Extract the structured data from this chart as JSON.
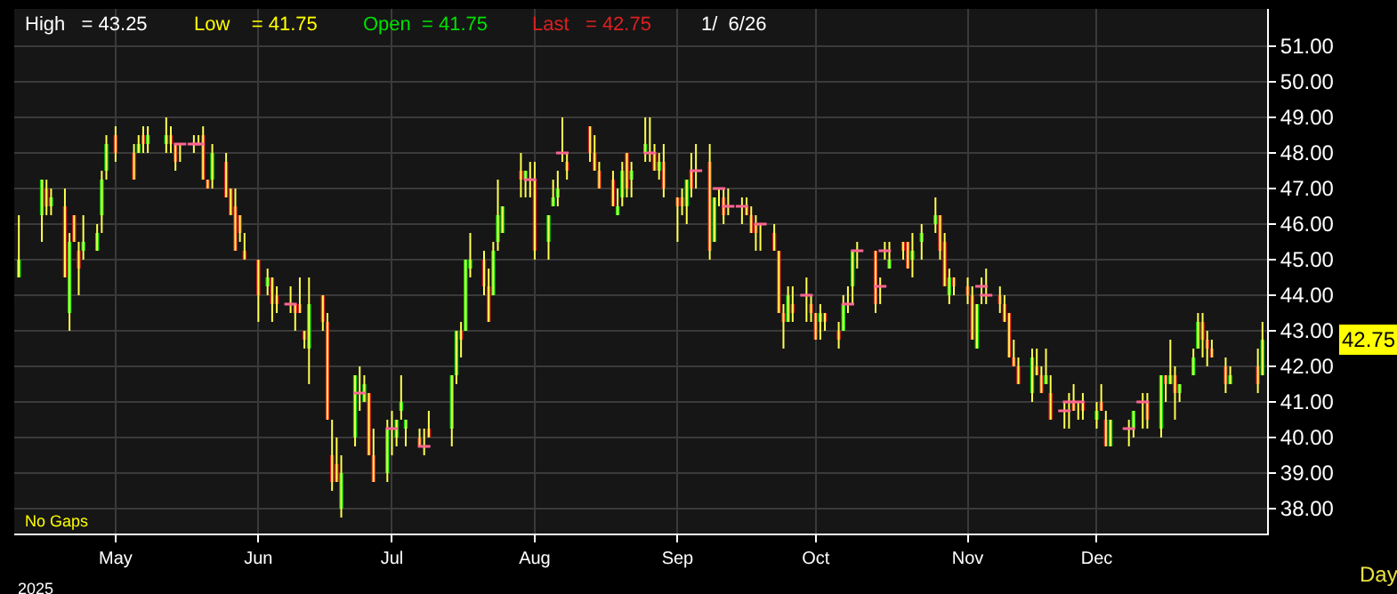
{
  "chart_data": {
    "type": "candlestick",
    "x": [
      "2025-04-11",
      "2025-04-16",
      "2025-04-17",
      "2025-04-18",
      "2025-04-21",
      "2025-04-22",
      "2025-04-23",
      "2025-04-24",
      "2025-04-25",
      "2025-04-28",
      "2025-04-29",
      "2025-04-30",
      "2025-05-02",
      "2025-05-06",
      "2025-05-07",
      "2025-05-08",
      "2025-05-09",
      "2025-05-13",
      "2025-05-14",
      "2025-05-15",
      "2025-05-16",
      "2025-05-19",
      "2025-05-20",
      "2025-05-21",
      "2025-05-22",
      "2025-05-23",
      "2025-05-26",
      "2025-05-27",
      "2025-05-28",
      "2025-05-29",
      "2025-05-30",
      "2025-06-02",
      "2025-06-04",
      "2025-06-05",
      "2025-06-06",
      "2025-06-09",
      "2025-06-10",
      "2025-06-11",
      "2025-06-12",
      "2025-06-13",
      "2025-06-16",
      "2025-06-17",
      "2025-06-18",
      "2025-06-19",
      "2025-06-20",
      "2025-06-23",
      "2025-06-24",
      "2025-06-25",
      "2025-06-26",
      "2025-06-27",
      "2025-06-30",
      "2025-07-01",
      "2025-07-02",
      "2025-07-03",
      "2025-07-04",
      "2025-07-07",
      "2025-07-08",
      "2025-07-09",
      "2025-07-14",
      "2025-07-15",
      "2025-07-16",
      "2025-07-17",
      "2025-07-18",
      "2025-07-21",
      "2025-07-22",
      "2025-07-23",
      "2025-07-24",
      "2025-07-25",
      "2025-07-29",
      "2025-07-30",
      "2025-07-31",
      "2025-08-01",
      "2025-08-04",
      "2025-08-05",
      "2025-08-06",
      "2025-08-07",
      "2025-08-08",
      "2025-08-13",
      "2025-08-14",
      "2025-08-15",
      "2025-08-18",
      "2025-08-19",
      "2025-08-20",
      "2025-08-21",
      "2025-08-22",
      "2025-08-25",
      "2025-08-26",
      "2025-08-27",
      "2025-08-28",
      "2025-08-29",
      "2025-09-01",
      "2025-09-02",
      "2025-09-03",
      "2025-09-04",
      "2025-09-05",
      "2025-09-08",
      "2025-09-09",
      "2025-09-10",
      "2025-09-11",
      "2025-09-12",
      "2025-09-15",
      "2025-09-16",
      "2025-09-17",
      "2025-09-18",
      "2025-09-19",
      "2025-09-22",
      "2025-09-23",
      "2025-09-24",
      "2025-09-25",
      "2025-09-26",
      "2025-09-29",
      "2025-09-30",
      "2025-10-01",
      "2025-10-02",
      "2025-10-03",
      "2025-10-06",
      "2025-10-07",
      "2025-10-08",
      "2025-10-09",
      "2025-10-10",
      "2025-10-14",
      "2025-10-15",
      "2025-10-16",
      "2025-10-17",
      "2025-10-20",
      "2025-10-21",
      "2025-10-22",
      "2025-10-24",
      "2025-10-27",
      "2025-10-28",
      "2025-10-29",
      "2025-10-30",
      "2025-10-31",
      "2025-11-03",
      "2025-11-04",
      "2025-11-05",
      "2025-11-06",
      "2025-11-07",
      "2025-11-10",
      "2025-11-11",
      "2025-11-12",
      "2025-11-13",
      "2025-11-14",
      "2025-11-17",
      "2025-11-18",
      "2025-11-19",
      "2025-11-20",
      "2025-11-21",
      "2025-11-24",
      "2025-11-25",
      "2025-11-26",
      "2025-11-27",
      "2025-11-28",
      "2025-12-01",
      "2025-12-02",
      "2025-12-03",
      "2025-12-04",
      "2025-12-08",
      "2025-12-09",
      "2025-12-11",
      "2025-12-12",
      "2025-12-15",
      "2025-12-16",
      "2025-12-17",
      "2025-12-18",
      "2025-12-19",
      "2025-12-22",
      "2025-12-23",
      "2025-12-24",
      "2025-12-25",
      "2025-12-26",
      "2025-12-29",
      "2025-12-30",
      "2026-01-05",
      "2026-01-06"
    ],
    "ohlc": [
      [
        44.5,
        46.25,
        44.5,
        45
      ],
      [
        46.25,
        47.25,
        45.5,
        47.25
      ],
      [
        47,
        47.25,
        46.25,
        46.5
      ],
      [
        46.5,
        47,
        46.25,
        46.75
      ],
      [
        46.5,
        47,
        44.5,
        44.5
      ],
      [
        43.5,
        45.75,
        43,
        45.5
      ],
      [
        46.25,
        46.25,
        45.5,
        45.5
      ],
      [
        45.25,
        45.5,
        44,
        44.75
      ],
      [
        45.25,
        46.25,
        45,
        45.5
      ],
      [
        45.25,
        46,
        45.25,
        45.75
      ],
      [
        46.25,
        47.5,
        45.75,
        47.25
      ],
      [
        47.5,
        48.5,
        47.25,
        48.25
      ],
      [
        48.5,
        48.75,
        47.75,
        48
      ],
      [
        48,
        48.25,
        47.25,
        47.25
      ],
      [
        48,
        48.5,
        48,
        48.25
      ],
      [
        48.5,
        48.75,
        48,
        48.25
      ],
      [
        48.25,
        48.75,
        48,
        48.5
      ],
      [
        48.25,
        49,
        48,
        48.5
      ],
      [
        48.5,
        48.75,
        48,
        48.25
      ],
      [
        48.25,
        48.25,
        47.5,
        47.75
      ],
      [
        48.25,
        48.25,
        47.75,
        48.25
      ],
      [
        48.25,
        48.5,
        48,
        48.25
      ],
      [
        48.25,
        48.5,
        48.25,
        48.25
      ],
      [
        48.5,
        48.75,
        47.25,
        47.25
      ],
      [
        47.25,
        47.25,
        47,
        47
      ],
      [
        47.25,
        48.25,
        47,
        48
      ],
      [
        47.75,
        48,
        46.75,
        46.75
      ],
      [
        47,
        47,
        46.25,
        46.25
      ],
      [
        46.5,
        47,
        45.25,
        45.25
      ],
      [
        46.25,
        46.25,
        45.5,
        45.75
      ],
      [
        45.25,
        45.75,
        45,
        45
      ],
      [
        45,
        45,
        43.25,
        44
      ],
      [
        44.25,
        44.75,
        44,
        44.5
      ],
      [
        44.5,
        44.5,
        43.25,
        43.75
      ],
      [
        44,
        44.25,
        43.5,
        43.75
      ],
      [
        43.75,
        44.25,
        43.5,
        43.75
      ],
      [
        43.75,
        43.75,
        43,
        43.5
      ],
      [
        43.75,
        44.5,
        43.5,
        43.5
      ],
      [
        43,
        43,
        42.5,
        42.75
      ],
      [
        42.5,
        44.5,
        41.5,
        43.75
      ],
      [
        44,
        44,
        43,
        43.25
      ],
      [
        43.25,
        43.5,
        40.5,
        40.5
      ],
      [
        39.5,
        40.5,
        38.5,
        38.75
      ],
      [
        39.25,
        40,
        38.75,
        38.75
      ],
      [
        38,
        39.5,
        37.75,
        39
      ],
      [
        40,
        41.75,
        39.75,
        41.75
      ],
      [
        41.25,
        42,
        40.75,
        41.25
      ],
      [
        41,
        41.75,
        41,
        41.5
      ],
      [
        41.25,
        41.25,
        39.5,
        39.5
      ],
      [
        39.5,
        40.25,
        38.75,
        38.75
      ],
      [
        39,
        40.5,
        38.75,
        40.25
      ],
      [
        40.25,
        40.75,
        39.5,
        40.25
      ],
      [
        40,
        40.5,
        39.75,
        40.5
      ],
      [
        40.75,
        41.75,
        40.5,
        41
      ],
      [
        40.25,
        40.5,
        39.75,
        40.5
      ],
      [
        40,
        40.25,
        39.75,
        39.75
      ],
      [
        39.75,
        40.25,
        39.5,
        39.75
      ],
      [
        40.25,
        40.75,
        40,
        40
      ],
      [
        40.25,
        41.75,
        39.75,
        41.75
      ],
      [
        41.75,
        43,
        41.5,
        43
      ],
      [
        43,
        43.25,
        42.25,
        42.75
      ],
      [
        43,
        45,
        43,
        45
      ],
      [
        44.75,
        45.75,
        44.5,
        45
      ],
      [
        45,
        45.25,
        44,
        44.25
      ],
      [
        44.25,
        44.75,
        43.25,
        43.25
      ],
      [
        44,
        45.5,
        44,
        45.25
      ],
      [
        45.5,
        47.25,
        45.25,
        46.25
      ],
      [
        45.75,
        46.5,
        45.75,
        46.5
      ],
      [
        47.5,
        48,
        46.75,
        47.25
      ],
      [
        47.25,
        47.5,
        46.75,
        47.5
      ],
      [
        47.25,
        47.75,
        46.75,
        47.25
      ],
      [
        47.25,
        47.75,
        45,
        45.25
      ],
      [
        45.5,
        46.25,
        45,
        46.25
      ],
      [
        46.5,
        47.25,
        46.5,
        46.75
      ],
      [
        46.75,
        47.5,
        46.5,
        47
      ],
      [
        48,
        49,
        47.75,
        48
      ],
      [
        47.75,
        48,
        47.25,
        47.5
      ],
      [
        48.75,
        48.75,
        47.75,
        48
      ],
      [
        48,
        48.5,
        47.5,
        47.5
      ],
      [
        47.5,
        47.75,
        47,
        47
      ],
      [
        47.25,
        47.5,
        46.5,
        46.5
      ],
      [
        46.25,
        47,
        46.25,
        46.5
      ],
      [
        46.75,
        47.75,
        46.5,
        47.5
      ],
      [
        48,
        48,
        46.75,
        47
      ],
      [
        47.25,
        47.75,
        46.75,
        47.5
      ],
      [
        48,
        49,
        47.75,
        48.25
      ],
      [
        48,
        49,
        47.75,
        48
      ],
      [
        48,
        48.25,
        47.5,
        47.5
      ],
      [
        47.5,
        48,
        47.25,
        47.75
      ],
      [
        47.75,
        48.25,
        46.75,
        47
      ],
      [
        46.75,
        46.75,
        45.5,
        46.5
      ],
      [
        46.75,
        47,
        46.25,
        46.5
      ],
      [
        46.5,
        47.25,
        46,
        47.25
      ],
      [
        47.5,
        48,
        46.75,
        47
      ],
      [
        47.5,
        48.25,
        47,
        47.5
      ],
      [
        47.75,
        48.25,
        45,
        45.25
      ],
      [
        45.5,
        46.75,
        45.5,
        46.75
      ],
      [
        47,
        47,
        46.5,
        47
      ],
      [
        46.75,
        47,
        46,
        46.25
      ],
      [
        46.5,
        47,
        46.25,
        46.5
      ],
      [
        46.5,
        46.75,
        46,
        46.5
      ],
      [
        46.5,
        46.75,
        46.25,
        46.25
      ],
      [
        46.25,
        46.5,
        45.75,
        45.75
      ],
      [
        46,
        46.25,
        45.25,
        45.75
      ],
      [
        46,
        46,
        45.25,
        46
      ],
      [
        45.75,
        46,
        45.25,
        45.25
      ],
      [
        45.25,
        45.25,
        43.5,
        43.5
      ],
      [
        43.5,
        43.75,
        42.5,
        43.25
      ],
      [
        43.25,
        44.25,
        43.25,
        44
      ],
      [
        43.75,
        44.25,
        43.25,
        43.5
      ],
      [
        44,
        44.5,
        43.25,
        44
      ],
      [
        43.75,
        44,
        43.25,
        43.5
      ],
      [
        43.5,
        43.5,
        42.75,
        42.75
      ],
      [
        43.25,
        43.75,
        42.75,
        43.5
      ],
      [
        43.5,
        43.5,
        43,
        43.25
      ],
      [
        43,
        43.25,
        42.5,
        42.75
      ],
      [
        43,
        44,
        43,
        43.75
      ],
      [
        43.75,
        44.25,
        43.5,
        43.75
      ],
      [
        44.25,
        45.25,
        43.75,
        45.25
      ],
      [
        45.25,
        45.5,
        44.75,
        45.25
      ],
      [
        45.25,
        45.25,
        43.5,
        43.75
      ],
      [
        44.25,
        44.5,
        43.75,
        44.25
      ],
      [
        45.25,
        45.5,
        45,
        45.25
      ],
      [
        44.75,
        45.5,
        44.75,
        45
      ],
      [
        45.5,
        45.5,
        45,
        45.25
      ],
      [
        45.5,
        45.5,
        44.75,
        44.75
      ],
      [
        45,
        45.75,
        44.5,
        45.25
      ],
      [
        45.5,
        46,
        45,
        45.75
      ],
      [
        46,
        46.75,
        45.75,
        46.25
      ],
      [
        46.25,
        46.25,
        45,
        45.25
      ],
      [
        45.5,
        45.75,
        44.25,
        44.25
      ],
      [
        44,
        44.75,
        43.75,
        44.5
      ],
      [
        44.5,
        44.5,
        44,
        44.25
      ],
      [
        44.25,
        44.5,
        43.75,
        44
      ],
      [
        44,
        44.25,
        42.75,
        42.75
      ],
      [
        42.5,
        43.75,
        42.5,
        43.75
      ],
      [
        44.25,
        44.5,
        43.75,
        44.25
      ],
      [
        44,
        44.75,
        43.75,
        44
      ],
      [
        44,
        44.25,
        43.5,
        43.75
      ],
      [
        43.75,
        44,
        43.25,
        43.25
      ],
      [
        43.5,
        43.5,
        42.25,
        42.25
      ],
      [
        42.25,
        42.75,
        42,
        42
      ],
      [
        42,
        42.25,
        41.5,
        41.5
      ],
      [
        41.25,
        42.5,
        41,
        42.25
      ],
      [
        42,
        42.5,
        41.75,
        41.75
      ],
      [
        41.75,
        42,
        41.25,
        41.25
      ],
      [
        41.5,
        42.5,
        41.5,
        41.75
      ],
      [
        41.25,
        41.75,
        40.5,
        40.5
      ],
      [
        40.75,
        41,
        40.25,
        40.75
      ],
      [
        41,
        41.25,
        40.25,
        41
      ],
      [
        41,
        41.5,
        40.75,
        40.75
      ],
      [
        41,
        41,
        40.5,
        41
      ],
      [
        41,
        41.25,
        40.5,
        40.75
      ],
      [
        40.5,
        41,
        40.25,
        40.75
      ],
      [
        41,
        41.5,
        40.75,
        40.75
      ],
      [
        40.5,
        40.75,
        39.75,
        39.75
      ],
      [
        39.75,
        40.5,
        39.75,
        40.5
      ],
      [
        40.25,
        40.5,
        39.75,
        40.25
      ],
      [
        40.25,
        40.75,
        40,
        40.75
      ],
      [
        41,
        41.25,
        40.25,
        41
      ],
      [
        41,
        41.25,
        40.25,
        40.5
      ],
      [
        40.25,
        41.75,
        40,
        41.75
      ],
      [
        41.75,
        41.75,
        41,
        41.5
      ],
      [
        41.5,
        42.75,
        41.5,
        41.75
      ],
      [
        41.75,
        42,
        40.5,
        41.25
      ],
      [
        41.25,
        41.5,
        41,
        41.5
      ],
      [
        41.75,
        42.5,
        41.75,
        42.25
      ],
      [
        42.5,
        43.5,
        42.5,
        43.25
      ],
      [
        43.25,
        43.5,
        42.25,
        42.75
      ],
      [
        42.75,
        43,
        42,
        42.5
      ],
      [
        42.5,
        42.75,
        42.25,
        42.25
      ],
      [
        42,
        42.25,
        41.25,
        41.5
      ],
      [
        41.5,
        42,
        41.5,
        41.75
      ],
      [
        42,
        42.5,
        41.25,
        41.5
      ],
      [
        41.75,
        43.25,
        41.75,
        42.75
      ]
    ],
    "xlim": [
      "2025-04-10T00:00",
      "2026-01-07T00:00"
    ],
    "xticks": [
      {
        "value": "2025-05-02",
        "label": "May"
      },
      {
        "value": "2025-06-02",
        "label": "Jun"
      },
      {
        "value": "2025-07-01",
        "label": "Jul"
      },
      {
        "value": "2025-08-01",
        "label": "Aug"
      },
      {
        "value": "2025-09-01",
        "label": "Sep"
      },
      {
        "value": "2025-10-01",
        "label": "Oct"
      },
      {
        "value": "2025-11-03",
        "label": "Nov"
      },
      {
        "value": "2025-12-01",
        "label": "Dec"
      }
    ],
    "ylim": [
      37.3,
      52.05
    ],
    "yticks": [
      {
        "value": 38,
        "label": "38.00"
      },
      {
        "value": 39,
        "label": "39.00"
      },
      {
        "value": 40,
        "label": "40.00"
      },
      {
        "value": 41,
        "label": "41.00"
      },
      {
        "value": 42,
        "label": "42.00"
      },
      {
        "value": 43,
        "label": "43.00"
      },
      {
        "value": 44,
        "label": "44.00"
      },
      {
        "value": 45,
        "label": "45.00"
      },
      {
        "value": 46,
        "label": "46.00"
      },
      {
        "value": 47,
        "label": "47.00"
      },
      {
        "value": 48,
        "label": "48.00"
      },
      {
        "value": 49,
        "label": "49.00"
      },
      {
        "value": 50,
        "label": "50.00"
      },
      {
        "value": 51,
        "label": "51.00"
      }
    ],
    "grid": true,
    "annotations": [
      "High   = 43.25",
      "Low    = 41.75",
      "Open  = 41.75",
      "Last   = 42.75",
      "1/  6/26",
      "No Gaps",
      "2025",
      "Day",
      "42.75"
    ]
  }
}
